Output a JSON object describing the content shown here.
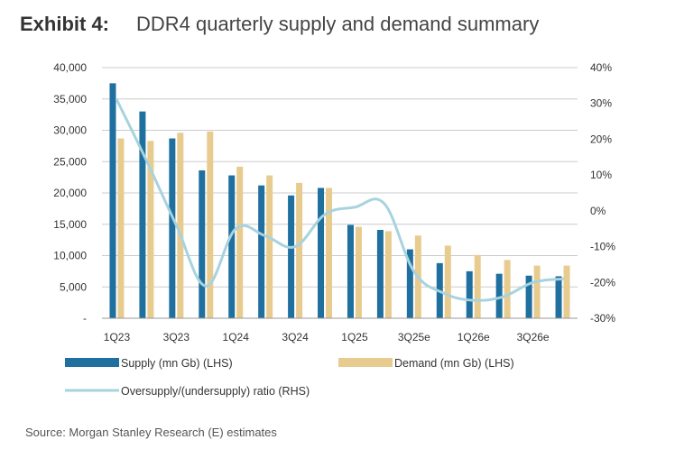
{
  "header": {
    "exhibit": "Exhibit 4:",
    "title": "DDR4 quarterly supply and demand summary"
  },
  "source": "Source: Morgan Stanley Research (E) estimates",
  "colors": {
    "supply": "#1f6f9f",
    "demand": "#e8cc8f",
    "ratio": "#a7d3df",
    "gridline": "#cccccc"
  },
  "chart_data": {
    "type": "bar",
    "categories": [
      "1Q23",
      "2Q23",
      "3Q23",
      "4Q23",
      "1Q24",
      "2Q24",
      "3Q24",
      "4Q24",
      "1Q25",
      "2Q25",
      "3Q25e",
      "4Q25e",
      "1Q26e",
      "2Q26e",
      "3Q26e",
      "4Q26e"
    ],
    "visible_category_labels": [
      "1Q23",
      "3Q23",
      "1Q24",
      "3Q24",
      "1Q25",
      "3Q25e",
      "1Q26e",
      "3Q26e"
    ],
    "series": [
      {
        "name": "Supply (mn Gb) (LHS)",
        "type": "bar",
        "axis": "left",
        "values": [
          37500,
          33000,
          28700,
          23600,
          22800,
          21200,
          19600,
          20800,
          14900,
          14100,
          11000,
          8800,
          7500,
          7100,
          6800,
          6700
        ]
      },
      {
        "name": "Demand (mn Gb) (LHS)",
        "type": "bar",
        "axis": "left",
        "values": [
          28700,
          28300,
          29600,
          29800,
          24200,
          22800,
          21600,
          20800,
          14600,
          13900,
          13200,
          11600,
          10100,
          9300,
          8400,
          8400
        ]
      },
      {
        "name": "Oversupply/(undersupply) ratio (RHS)",
        "type": "line",
        "axis": "right",
        "values": [
          31,
          14,
          -4,
          -21,
          -5,
          -7,
          -10,
          -1,
          1,
          2,
          -17,
          -23,
          -25,
          -24,
          -20,
          -19
        ]
      }
    ],
    "left_axis": {
      "min": 0,
      "max": 40000,
      "ticks": [
        40000,
        35000,
        30000,
        25000,
        20000,
        15000,
        10000,
        5000,
        0
      ],
      "tick_labels": [
        "40,000",
        "35,000",
        "30,000",
        "25,000",
        "20,000",
        "15,000",
        "10,000",
        "5,000",
        "-"
      ]
    },
    "right_axis": {
      "min": -30,
      "max": 40,
      "ticks": [
        40,
        30,
        20,
        10,
        0,
        -10,
        -20,
        -30
      ],
      "tick_labels": [
        "40%",
        "30%",
        "20%",
        "10%",
        "0%",
        "-10%",
        "-20%",
        "-30%"
      ]
    },
    "grid": true,
    "legend_position": "bottom"
  }
}
